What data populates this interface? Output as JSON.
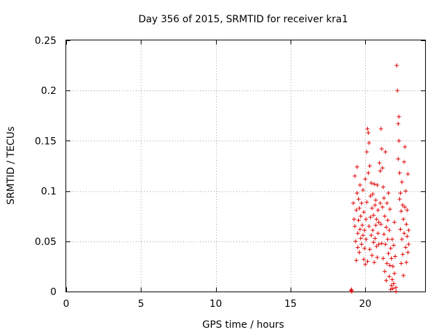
{
  "chart_data": {
    "type": "scatter",
    "title": "Day 356 of 2015, SRMTID for receiver kra1",
    "xlabel": "GPS time / hours",
    "ylabel": "SRMTID / TECUs",
    "xlim": [
      0,
      24
    ],
    "ylim": [
      0,
      0.25
    ],
    "xticks": [
      0,
      5,
      10,
      15,
      20
    ],
    "xtick_labels": [
      "0",
      "5",
      "10",
      "15",
      "20"
    ],
    "yticks": [
      0,
      0.05,
      0.1,
      0.15,
      0.2,
      0.25
    ],
    "ytick_labels": [
      "0",
      "0.05",
      "0.1",
      "0.15",
      "0.2",
      "0.25"
    ],
    "grid": true,
    "series": [
      {
        "name": "kra1",
        "color": "#e00000",
        "marker": "plus",
        "points": [
          [
            19.05,
            0.001
          ],
          [
            19.08,
            0.002
          ],
          [
            19.1,
            0.0
          ],
          [
            19.2,
            0.088
          ],
          [
            19.25,
            0.072
          ],
          [
            19.3,
            0.115
          ],
          [
            19.3,
            0.065
          ],
          [
            19.35,
            0.05
          ],
          [
            19.4,
            0.031
          ],
          [
            19.4,
            0.081
          ],
          [
            19.45,
            0.124
          ],
          [
            19.45,
            0.098
          ],
          [
            19.5,
            0.058
          ],
          [
            19.5,
            0.044
          ],
          [
            19.55,
            0.092
          ],
          [
            19.55,
            0.071
          ],
          [
            19.6,
            0.083
          ],
          [
            19.6,
            0.039
          ],
          [
            19.65,
            0.106
          ],
          [
            19.65,
            0.062
          ],
          [
            19.7,
            0.053
          ],
          [
            19.7,
            0.075
          ],
          [
            19.75,
            0.047
          ],
          [
            19.75,
            0.088
          ],
          [
            19.8,
            0.066
          ],
          [
            19.85,
            0.101
          ],
          [
            19.85,
            0.056
          ],
          [
            19.9,
            0.032
          ],
          [
            19.9,
            0.079
          ],
          [
            19.95,
            0.043
          ],
          [
            19.95,
            0.061
          ],
          [
            20.0,
            0.112
          ],
          [
            20.0,
            0.027
          ],
          [
            20.05,
            0.072
          ],
          [
            20.05,
            0.052
          ],
          [
            20.1,
            0.139
          ],
          [
            20.1,
            0.089
          ],
          [
            20.15,
            0.162
          ],
          [
            20.15,
            0.03
          ],
          [
            20.2,
            0.158
          ],
          [
            20.2,
            0.118
          ],
          [
            20.25,
            0.148
          ],
          [
            20.25,
            0.065
          ],
          [
            20.3,
            0.125
          ],
          [
            20.3,
            0.042
          ],
          [
            20.35,
            0.095
          ],
          [
            20.35,
            0.074
          ],
          [
            20.4,
            0.108
          ],
          [
            20.4,
            0.056
          ],
          [
            20.45,
            0.083
          ],
          [
            20.45,
            0.036
          ],
          [
            20.5,
            0.097
          ],
          [
            20.5,
            0.061
          ],
          [
            20.55,
            0.049
          ],
          [
            20.55,
            0.076
          ],
          [
            20.6,
            0.107
          ],
          [
            20.6,
            0.029
          ],
          [
            20.65,
            0.086
          ],
          [
            20.65,
            0.053
          ],
          [
            20.7,
            0.066
          ],
          [
            20.7,
            0.091
          ],
          [
            20.75,
            0.045
          ],
          [
            20.75,
            0.072
          ],
          [
            20.8,
            0.106
          ],
          [
            20.8,
            0.034
          ],
          [
            20.85,
            0.058
          ],
          [
            20.85,
            0.081
          ],
          [
            20.9,
            0.047
          ],
          [
            20.9,
            0.069
          ],
          [
            20.95,
            0.128
          ],
          [
            21.0,
            0.12
          ],
          [
            21.0,
            0.088
          ],
          [
            21.05,
            0.162
          ],
          [
            21.05,
            0.067
          ],
          [
            21.1,
            0.142
          ],
          [
            21.1,
            0.048
          ],
          [
            21.15,
            0.123
          ],
          [
            21.15,
            0.084
          ],
          [
            21.2,
            0.104
          ],
          [
            21.2,
            0.033
          ],
          [
            21.25,
            0.093
          ],
          [
            21.25,
            0.057
          ],
          [
            21.3,
            0.075
          ],
          [
            21.3,
            0.02
          ],
          [
            21.35,
            0.139
          ],
          [
            21.35,
            0.047
          ],
          [
            21.4,
            0.064
          ],
          [
            21.4,
            0.011
          ],
          [
            21.45,
            0.088
          ],
          [
            21.45,
            0.028
          ],
          [
            21.5,
            0.052
          ],
          [
            21.5,
            0.071
          ],
          [
            21.55,
            0.038
          ],
          [
            21.55,
            0.098
          ],
          [
            21.6,
            0.015
          ],
          [
            21.6,
            0.061
          ],
          [
            21.65,
            0.026
          ],
          [
            21.65,
            0.082
          ],
          [
            21.7,
            0.043
          ],
          [
            21.7,
            0.002
          ],
          [
            21.75,
            0.033
          ],
          [
            21.75,
            0.006
          ],
          [
            21.8,
            0.052
          ],
          [
            21.8,
            0.012
          ],
          [
            21.85,
            0.003
          ],
          [
            21.85,
            0.025
          ],
          [
            21.9,
            0.008
          ],
          [
            21.9,
            0.046
          ],
          [
            21.95,
            0.018
          ],
          [
            21.95,
            0.069
          ],
          [
            22.0,
            0.035
          ],
          [
            22.05,
            0.0
          ],
          [
            22.05,
            0.004
          ],
          [
            22.1,
            0.225
          ],
          [
            22.15,
            0.2
          ],
          [
            22.2,
            0.167
          ],
          [
            22.2,
            0.132
          ],
          [
            22.25,
            0.174
          ],
          [
            22.25,
            0.15
          ],
          [
            22.3,
            0.118
          ],
          [
            22.3,
            0.092
          ],
          [
            22.35,
            0.098
          ],
          [
            22.35,
            0.062
          ],
          [
            22.4,
            0.08
          ],
          [
            22.4,
            0.028
          ],
          [
            22.45,
            0.109
          ],
          [
            22.45,
            0.052
          ],
          [
            22.5,
            0.086
          ],
          [
            22.5,
            0.037
          ],
          [
            22.55,
            0.072
          ],
          [
            22.55,
            0.016
          ],
          [
            22.6,
            0.129
          ],
          [
            22.6,
            0.058
          ],
          [
            22.65,
            0.144
          ],
          [
            22.65,
            0.084
          ],
          [
            22.7,
            0.1
          ],
          [
            22.7,
            0.044
          ],
          [
            22.75,
            0.067
          ],
          [
            22.75,
            0.029
          ],
          [
            22.8,
            0.081
          ],
          [
            22.8,
            0.055
          ],
          [
            22.85,
            0.117
          ],
          [
            22.85,
            0.039
          ],
          [
            22.9,
            0.061
          ],
          [
            22.9,
            0.047
          ]
        ]
      }
    ]
  }
}
